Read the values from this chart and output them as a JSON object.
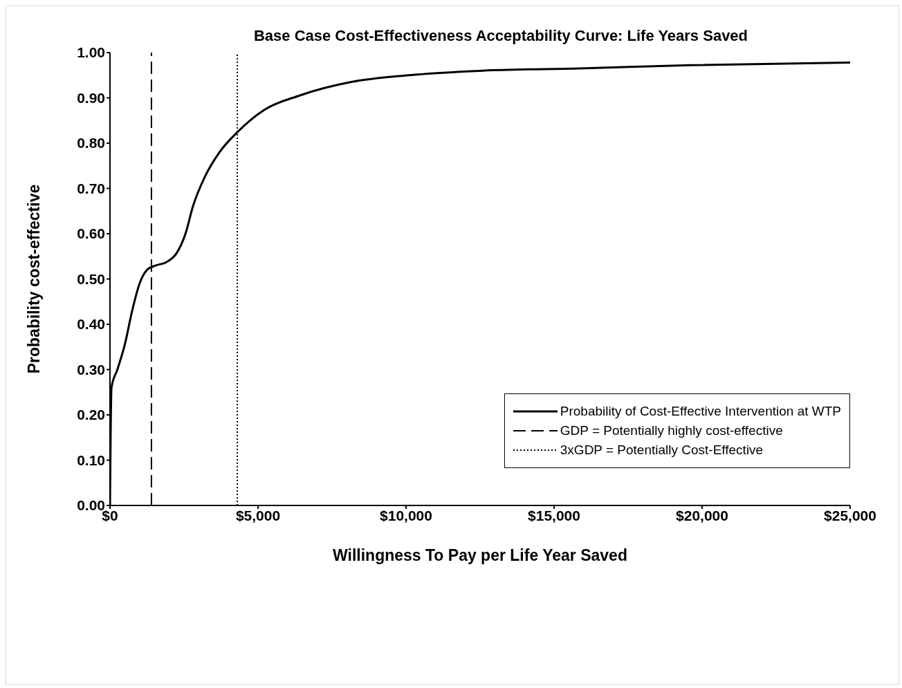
{
  "chart_data": {
    "type": "line",
    "title": "Base Case Cost-Effectiveness Acceptability Curve: Life Years Saved",
    "xlabel": "Willingness To Pay per Life Year Saved",
    "ylabel": "Probability cost-effective",
    "xlim": [
      0,
      25000
    ],
    "xticks": [
      {
        "value": 0,
        "label": "$0"
      },
      {
        "value": 5000,
        "label": "$5,000"
      },
      {
        "value": 10000,
        "label": "$10,000"
      },
      {
        "value": 15000,
        "label": "$15,000"
      },
      {
        "value": 20000,
        "label": "$20,000"
      },
      {
        "value": 25000,
        "label": "$25,000"
      }
    ],
    "ylim": [
      0,
      1
    ],
    "yticks": [
      {
        "value": 0,
        "label": "0.00"
      },
      {
        "value": 0.1,
        "label": "0.10"
      },
      {
        "value": 0.2,
        "label": "0.20"
      },
      {
        "value": 0.3,
        "label": "0.30"
      },
      {
        "value": 0.4,
        "label": "0.40"
      },
      {
        "value": 0.5,
        "label": "0.50"
      },
      {
        "value": 0.6,
        "label": "0.60"
      },
      {
        "value": 0.7,
        "label": "0.70"
      },
      {
        "value": 0.8,
        "label": "0.80"
      },
      {
        "value": 0.9,
        "label": "0.90"
      },
      {
        "value": 1,
        "label": "1.00"
      }
    ],
    "grid": false,
    "legend": "right",
    "marker": "none",
    "series": [
      {
        "name": "Probability of Cost-Effective Intervention at WTP",
        "color": "#000000",
        "line_style": "solid",
        "x": [
          0,
          50,
          250,
          500,
          750,
          1000,
          1250,
          1550,
          1900,
          2250,
          2550,
          2800,
          3200,
          3700,
          4300,
          5200,
          6400,
          8150,
          10100,
          12600,
          15850,
          19600,
          25000
        ],
        "values": [
          0,
          0.26,
          0.3,
          0.355,
          0.43,
          0.49,
          0.52,
          0.53,
          0.537,
          0.557,
          0.6,
          0.66,
          0.725,
          0.78,
          0.824,
          0.873,
          0.905,
          0.935,
          0.95,
          0.96,
          0.965,
          0.972,
          0.978
        ]
      },
      {
        "name": "GDP = Potentially highly cost-effective",
        "color": "#000000",
        "line_style": "dashed",
        "x": [
          1400,
          1400
        ],
        "values": [
          0,
          1
        ]
      },
      {
        "name": "3xGDP = Potentially Cost-Effective",
        "color": "#000000",
        "line_style": "dotted",
        "x": [
          4300,
          4300
        ],
        "values": [
          0,
          1
        ]
      }
    ]
  }
}
